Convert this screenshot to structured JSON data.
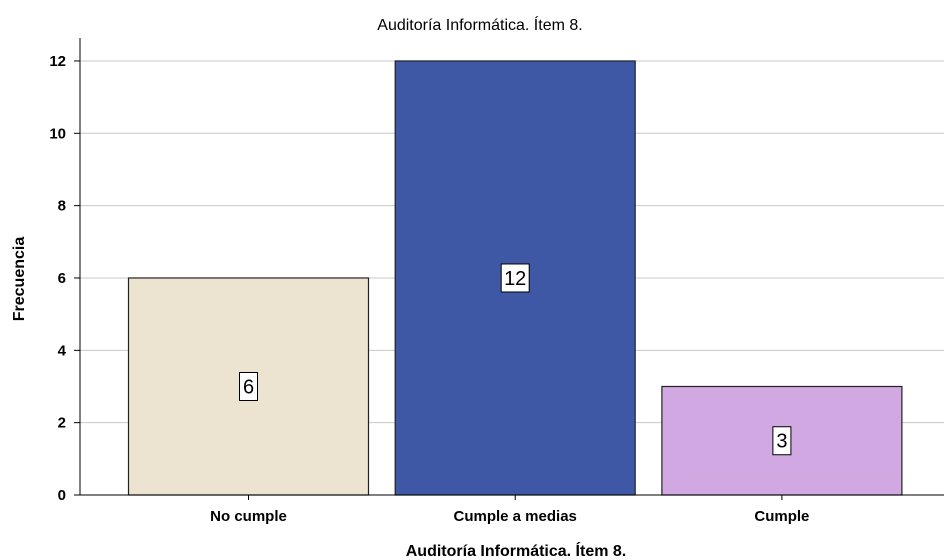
{
  "chart_data": {
    "type": "bar",
    "title": "Auditoría Informática. Ítem 8.",
    "xlabel": "Auditoría Informática. Ítem 8.",
    "ylabel": "Frecuencia",
    "categories": [
      "No cumple",
      "Cumple a medias",
      "Cumple"
    ],
    "values": [
      6,
      12,
      3
    ],
    "data_labels": [
      "6",
      "12",
      "3"
    ],
    "colors": [
      "#ECE4D0",
      "#3E58A6",
      "#D2A8E2"
    ],
    "ylim": [
      0,
      12.5
    ],
    "yticks": [
      0,
      2,
      4,
      6,
      8,
      10,
      12
    ],
    "grid": true,
    "legend": "none"
  }
}
